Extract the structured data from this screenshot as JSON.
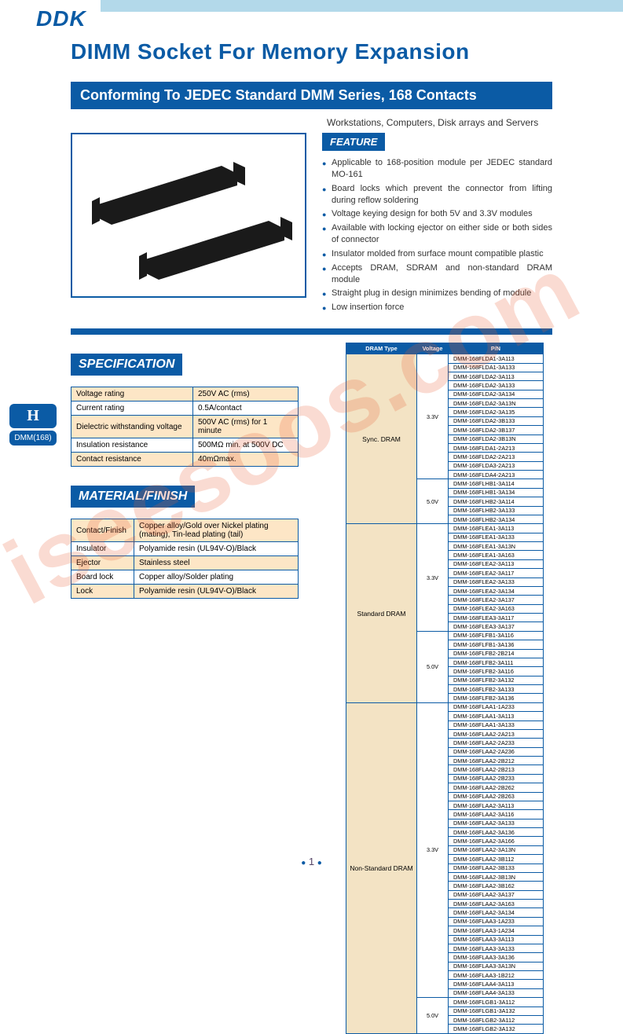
{
  "watermark": "iseesoos.com",
  "logo": "DDK",
  "page_title": "DIMM Socket For Memory Expansion",
  "section_header": "Conforming To JEDEC Standard DMM Series, 168 Contacts",
  "sub_text": "Workstations, Computers, Disk arrays and Servers",
  "feature_tag": "FEATURE",
  "features": [
    "Applicable to 168-position module per JEDEC standard MO-161",
    "Board locks which prevent the connector from lifting during reflow soldering",
    "Voltage keying design for both 5V and 3.3V modules",
    "Available with locking ejector on either side or both sides of connector",
    "Insulator molded from surface mount compatible plastic",
    "Accepts DRAM, SDRAM and non-standard DRAM module",
    "Straight plug in design minimizes bending of module",
    "Low insertion force"
  ],
  "tab": {
    "letter": "H",
    "sub": "DMM(168)"
  },
  "spec": {
    "header": "SPECIFICATION",
    "rows": [
      [
        "Voltage rating",
        "250V AC (rms)"
      ],
      [
        "Current rating",
        "0.5A/contact"
      ],
      [
        "Dielectric withstanding voltage",
        "500V AC (rms) for 1 minute"
      ],
      [
        "Insulation resistance",
        "500MΩ min. at 500V DC"
      ],
      [
        "Contact resistance",
        "40mΩmax."
      ]
    ]
  },
  "material": {
    "header": "MATERIAL/FINISH",
    "rows": [
      [
        "Contact/Finish",
        "Copper alloy/Gold over Nickel plating (mating), Tin-lead plating (tail)"
      ],
      [
        "Insulator",
        "Polyamide resin (UL94V-O)/Black"
      ],
      [
        "Ejector",
        "Stainless steel"
      ],
      [
        "Board lock",
        "Copper alloy/Solder plating"
      ],
      [
        "Lock",
        "Polyamide resin (UL94V-O)/Black"
      ]
    ]
  },
  "pn_table": {
    "headers": [
      "DRAM Type",
      "Voltage",
      "P/N"
    ],
    "groups": [
      {
        "type": "Sync. DRAM",
        "voltages": [
          {
            "v": "3.3V",
            "pns": [
              "DMM-168FLDA1-3A113",
              "DMM-168FLDA1-3A133",
              "DMM-168FLDA2-3A113",
              "DMM-168FLDA2-3A133",
              "DMM-168FLDA2-3A134",
              "DMM-168FLDA2-3A13N",
              "DMM-168FLDA2-3A135",
              "DMM-168FLDA2-3B133",
              "DMM-168FLDA2-3B137",
              "DMM-168FLDA2-3B13N",
              "DMM-168FLDA1-2A213",
              "DMM-168FLDA2-2A213",
              "DMM-168FLDA3-2A213",
              "DMM-168FLDA4-2A213"
            ]
          },
          {
            "v": "5.0V",
            "pns": [
              "DMM-168FLHB1-3A114",
              "DMM-168FLHB1-3A134",
              "DMM-168FLHB2-3A114",
              "DMM-168FLHB2-3A133",
              "DMM-168FLHB2-3A134"
            ]
          }
        ]
      },
      {
        "type": "Standard DRAM",
        "voltages": [
          {
            "v": "3.3V",
            "pns": [
              "DMM-168FLEA1-3A113",
              "DMM-168FLEA1-3A133",
              "DMM-168FLEA1-3A13N",
              "DMM-168FLEA1-3A163",
              "DMM-168FLEA2-3A113",
              "DMM-168FLEA2-3A117",
              "DMM-168FLEA2-3A133",
              "DMM-168FLEA2-3A134",
              "DMM-168FLEA2-3A137",
              "DMM-168FLEA2-3A163",
              "DMM-168FLEA3-3A117",
              "DMM-168FLEA3-3A137"
            ]
          },
          {
            "v": "5.0V",
            "pns": [
              "DMM-168FLFB1-3A116",
              "DMM-168FLFB1-3A136",
              "DMM-168FLFB2-2B214",
              "DMM-168FLFB2-3A111",
              "DMM-168FLFB2-3A116",
              "DMM-168FLFB2-3A132",
              "DMM-168FLFB2-3A133",
              "DMM-168FLFB2-3A136"
            ]
          }
        ]
      },
      {
        "type": "Non-Standard DRAM",
        "voltages": [
          {
            "v": "3.3V",
            "pns": [
              "DMM-168FLAA1-1A233",
              "DMM-168FLAA1-3A113",
              "DMM-168FLAA1-3A133",
              "DMM-168FLAA2-2A213",
              "DMM-168FLAA2-2A233",
              "DMM-168FLAA2-2A236",
              "DMM-168FLAA2-2B212",
              "DMM-168FLAA2-2B213",
              "DMM-168FLAA2-2B233",
              "DMM-168FLAA2-2B262",
              "DMM-168FLAA2-2B263",
              "DMM-168FLAA2-3A113",
              "DMM-168FLAA2-3A116",
              "DMM-168FLAA2-3A133",
              "DMM-168FLAA2-3A136",
              "DMM-168FLAA2-3A166",
              "DMM-168FLAA2-3A13N",
              "DMM-168FLAA2-3B112",
              "DMM-168FLAA2-3B133",
              "DMM-168FLAA2-3B13N",
              "DMM-168FLAA2-3B162",
              "DMM-168FLAA2-3A137",
              "DMM-168FLAA2-3A163",
              "DMM-168FLAA2-3A134",
              "DMM-168FLAA3-1A233",
              "DMM-168FLAA3-1A234",
              "DMM-168FLAA3-3A113",
              "DMM-168FLAA3-3A133",
              "DMM-168FLAA3-3A136",
              "DMM-168FLAA3-3A13N",
              "DMM-168FLAA3-1B212",
              "DMM-168FLAA4-3A113",
              "DMM-168FLAA4-3A133"
            ]
          },
          {
            "v": "5.0V",
            "pns": [
              "DMM-168FLGB1-3A112",
              "DMM-168FLGB1-3A132",
              "DMM-168FLGB2-3A112",
              "DMM-168FLGB2-3A132"
            ]
          }
        ]
      }
    ]
  },
  "page_number": "1"
}
